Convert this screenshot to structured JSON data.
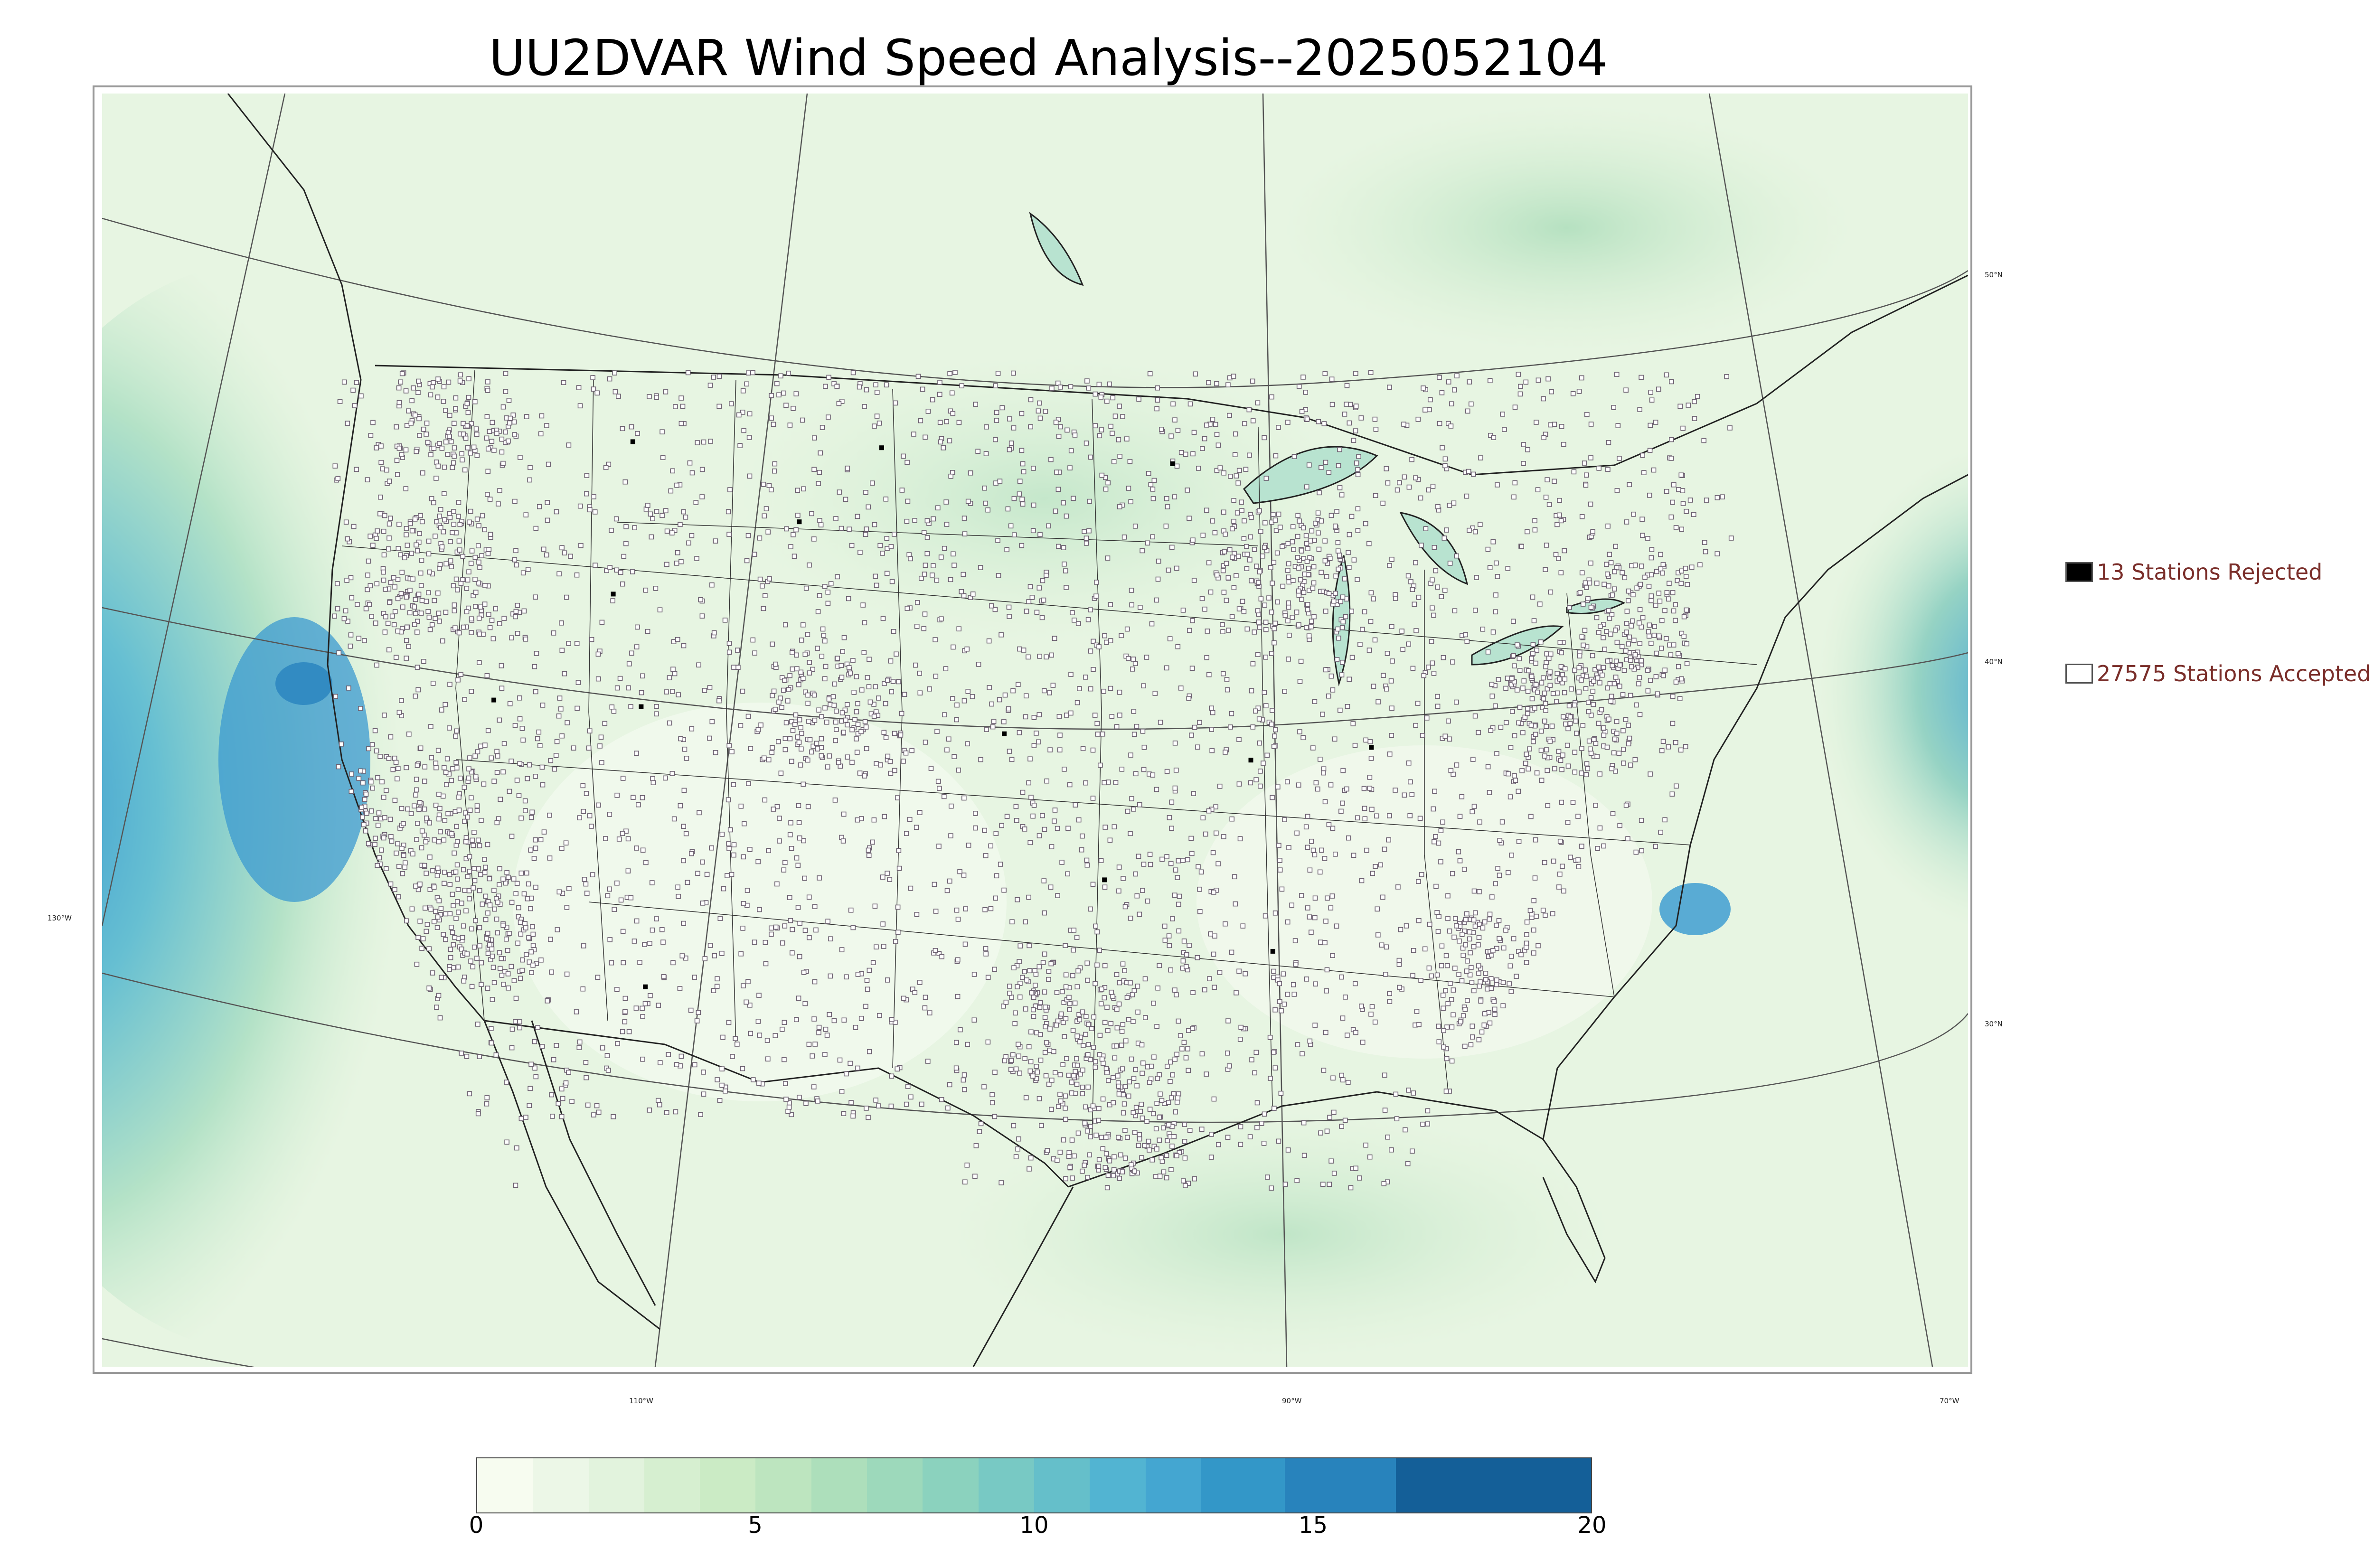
{
  "title": "UU2DVAR Wind Speed Analysis--2025052104",
  "legend": {
    "rejected_label": "13 Stations Rejected",
    "accepted_label": "27575 Stations Accepted",
    "rejected_color": "#000000",
    "accepted_color": "#ffffff"
  },
  "latitude_labels": [
    "50°N",
    "40°N",
    "30°N"
  ],
  "longitude_labels": [
    "130°W",
    "110°W",
    "90°W",
    "70°W"
  ],
  "colorbar": {
    "ticks": [
      "0",
      "5",
      "10",
      "15",
      "20"
    ],
    "min": 0,
    "max": 20,
    "bins": [
      {
        "from": 0,
        "to": 1,
        "color": "#f7fcf0"
      },
      {
        "from": 1,
        "to": 2,
        "color": "#ecf7e7"
      },
      {
        "from": 2,
        "to": 3,
        "color": "#e2f3dd"
      },
      {
        "from": 3,
        "to": 4,
        "color": "#d6efd0"
      },
      {
        "from": 4,
        "to": 5,
        "color": "#cbebc5"
      },
      {
        "from": 5,
        "to": 6,
        "color": "#bde5bf"
      },
      {
        "from": 6,
        "to": 7,
        "color": "#addfbb"
      },
      {
        "from": 7,
        "to": 8,
        "color": "#9dd9bb"
      },
      {
        "from": 8,
        "to": 9,
        "color": "#8bd2be"
      },
      {
        "from": 9,
        "to": 10,
        "color": "#78c9c4"
      },
      {
        "from": 10,
        "to": 11,
        "color": "#65bfca"
      },
      {
        "from": 11,
        "to": 12,
        "color": "#52b4d2"
      },
      {
        "from": 12,
        "to": 13,
        "color": "#44a6d1"
      },
      {
        "from": 13,
        "to": 14.5,
        "color": "#3397c8"
      },
      {
        "from": 14.5,
        "to": 16.5,
        "color": "#2883bc"
      },
      {
        "from": 16.5,
        "to": 20,
        "color": "#145f98"
      }
    ]
  },
  "colors": {
    "land": "#e7f5e2",
    "ocean_mid": "#b8e3c7",
    "ocean_high": "#4aa8d5",
    "ocean_max": "#1a6aa6",
    "station_marker": "#6c6070",
    "boundary": "#222222"
  }
}
